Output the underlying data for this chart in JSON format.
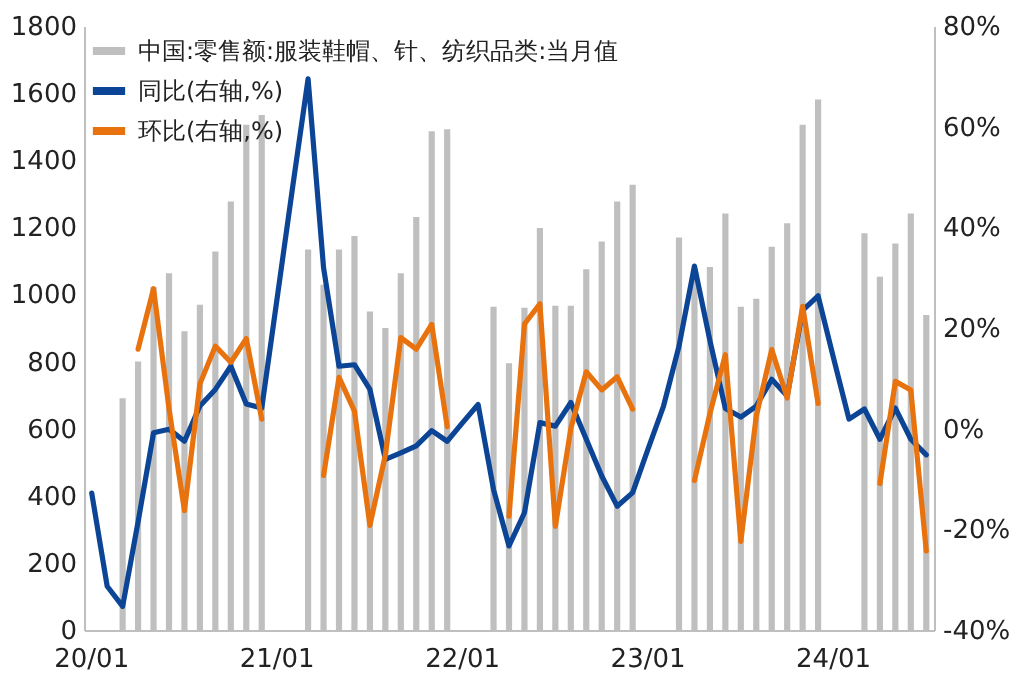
{
  "chart_data": {
    "type": "bar",
    "legend": "top left",
    "categories": [
      "20/01",
      null,
      null,
      null,
      null,
      null,
      null,
      null,
      null,
      null,
      null,
      null,
      "21/01",
      null,
      null,
      null,
      null,
      null,
      null,
      null,
      null,
      null,
      null,
      null,
      "22/01",
      null,
      null,
      null,
      null,
      null,
      null,
      null,
      null,
      null,
      null,
      null,
      "23/01",
      null,
      null,
      null,
      null,
      null,
      null,
      null,
      null,
      null,
      null,
      null,
      "24/01",
      null,
      null,
      null,
      null,
      null,
      null
    ],
    "series": [
      {
        "name": "中国:零售额:服装鞋帽、针、纺织品类:当月值",
        "color": "#bfbfbf",
        "values": [
          null,
          null,
          691,
          800,
          1022,
          1063,
          890,
          969,
          1128,
          1277,
          1506,
          1535,
          null,
          null,
          1134,
          1029,
          1134,
          1174,
          949,
          900,
          1063,
          1231,
          1486,
          1492,
          null,
          null,
          963,
          795,
          960,
          1198,
          966,
          966,
          1075,
          1158,
          1277,
          1327,
          null,
          null,
          1170,
          1050,
          1082,
          1241,
          963,
          987,
          1142,
          1212,
          1506,
          1581,
          null,
          null,
          1182,
          1053,
          1152,
          1241,
          939
        ]
      },
      {
        "name": "同比(右轴,%)",
        "type": "line",
        "axis": "y2",
        "color": "#0d4596",
        "values": [
          -12.8,
          -31.3,
          -35.3,
          -18.5,
          -0.8,
          -0.1,
          -2.5,
          4.5,
          7.8,
          12.4,
          4.9,
          4.1,
          26,
          48,
          69.5,
          32,
          12.4,
          12.7,
          7.8,
          -6.1,
          -4.8,
          -3.4,
          -0.4,
          -2.5,
          1.2,
          4.8,
          -12.1,
          -23.3,
          -16.7,
          1.2,
          0.5,
          5.2,
          -2.1,
          -9.4,
          -15.4,
          -12.7,
          -4,
          4.5,
          16.4,
          32.3,
          17.5,
          4,
          2.3,
          4.5,
          9.8,
          6.5,
          23.5,
          26.4,
          14,
          1.9,
          3.9,
          -2.1,
          4.1,
          -2.1,
          -5.2
        ]
      },
      {
        "name": "环比(右轴,%)",
        "type": "line",
        "axis": "y2",
        "color": "#e8730e",
        "values": [
          null,
          null,
          null,
          15.8,
          27.8,
          4.0,
          -16.3,
          8.9,
          16.4,
          13.2,
          17.9,
          1.9,
          null,
          null,
          null,
          -9.3,
          10.2,
          3.5,
          -19.2,
          -5.2,
          18.1,
          15.8,
          20.7,
          0.4,
          null,
          null,
          null,
          -17.4,
          20.8,
          24.8,
          -19.4,
          0,
          11.3,
          7.7,
          10.3,
          3.9,
          null,
          null,
          null,
          -10.3,
          3.0,
          14.7,
          -22.4,
          2.5,
          15.7,
          6.1,
          24.3,
          5.0,
          null,
          null,
          null,
          -10.9,
          9.4,
          7.7,
          -24.3
        ]
      }
    ],
    "ylim": [
      0,
      1800
    ],
    "yticks": [
      0,
      200,
      400,
      600,
      800,
      1000,
      1200,
      1400,
      1600,
      1800
    ],
    "y2lim": [
      -40,
      80
    ],
    "y2ticks": [
      {
        "value": -40,
        "label": "-40%"
      },
      {
        "value": -20,
        "label": "-20%"
      },
      {
        "value": 0,
        "label": "0%"
      },
      {
        "value": 20,
        "label": "20%"
      },
      {
        "value": 40,
        "label": "40%"
      },
      {
        "value": 60,
        "label": "60%"
      },
      {
        "value": 80,
        "label": "80%"
      }
    ]
  }
}
